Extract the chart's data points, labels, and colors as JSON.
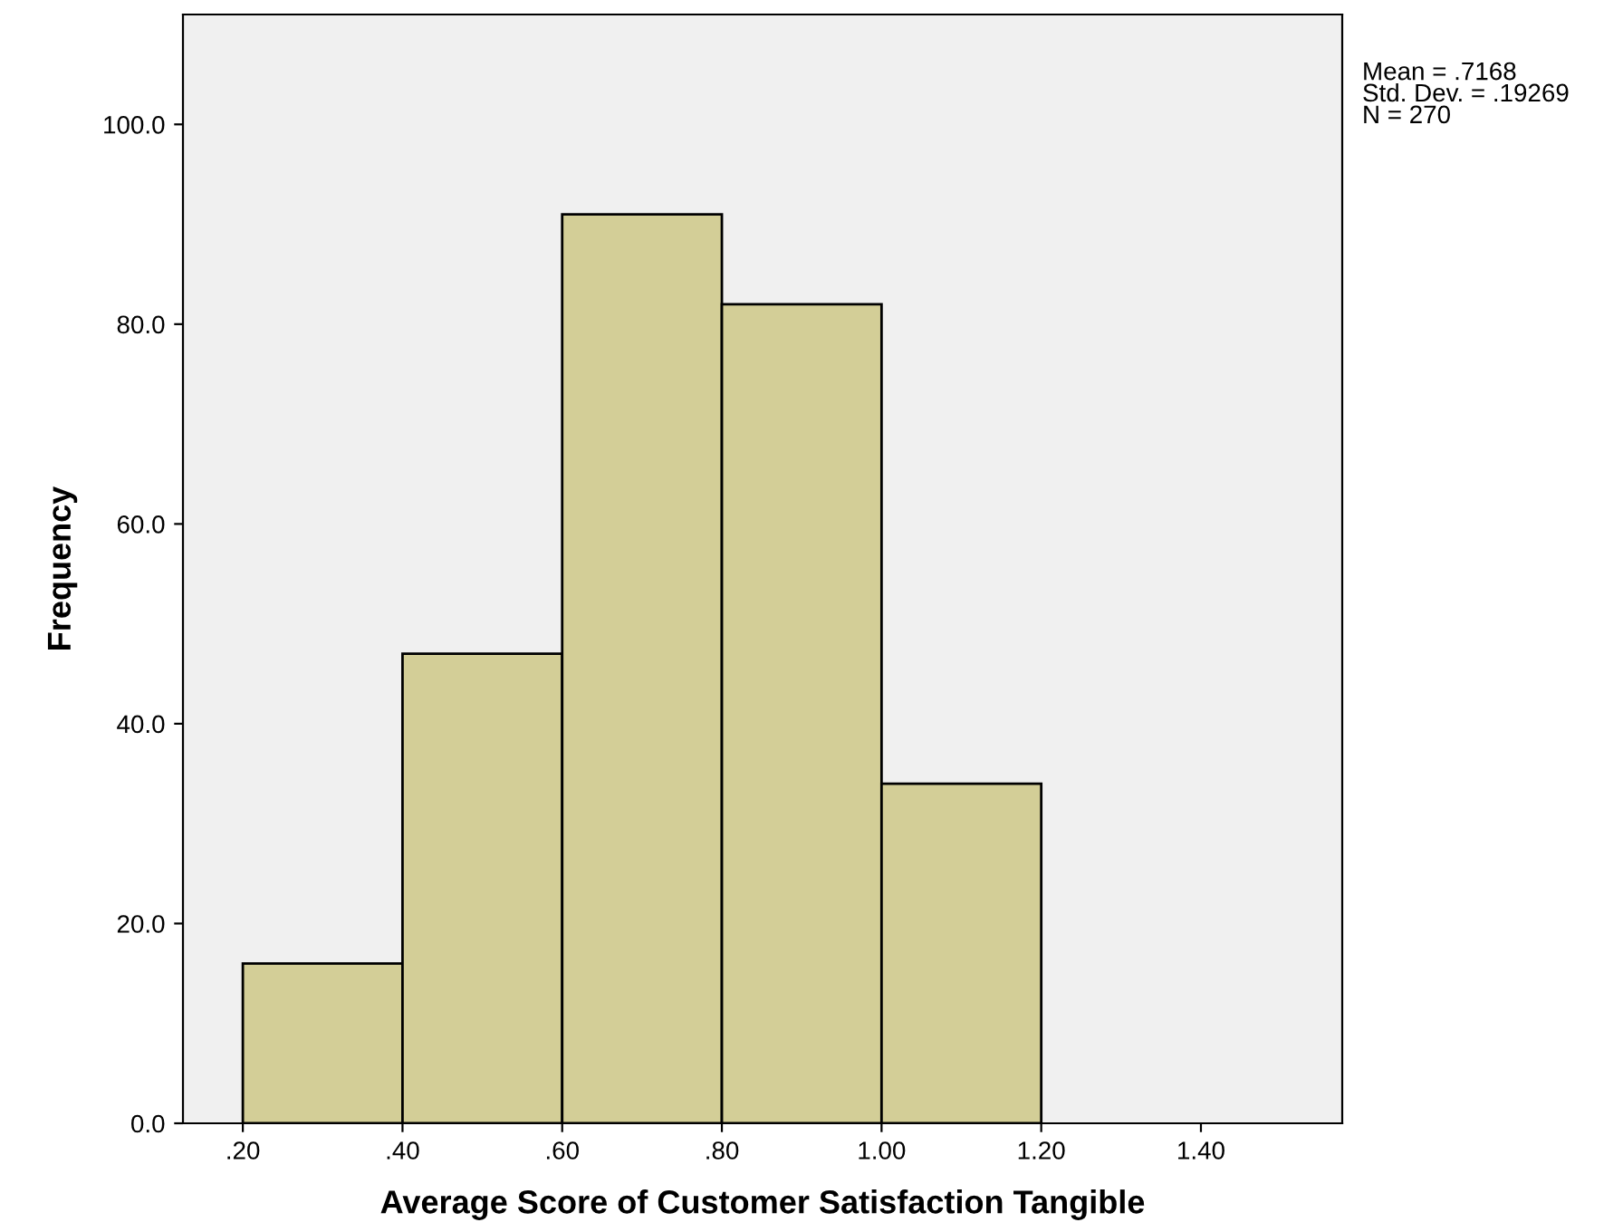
{
  "chart_data": {
    "type": "histogram",
    "xlabel": "Average Score of Customer Satisfaction Tangible",
    "ylabel": "Frequency",
    "bins": [
      0.2,
      0.4,
      0.6,
      0.8,
      1.0,
      1.2
    ],
    "values": [
      16,
      47,
      91,
      82,
      34
    ],
    "color": "#d3ce97",
    "xlim": [
      0.125,
      1.577
    ],
    "ylim": [
      0,
      111
    ],
    "xticks": [
      {
        "value": 0.2,
        "label": ".20"
      },
      {
        "value": 0.4,
        "label": ".40"
      },
      {
        "value": 0.6,
        "label": ".60"
      },
      {
        "value": 0.8,
        "label": ".80"
      },
      {
        "value": 1.0,
        "label": "1.00"
      },
      {
        "value": 1.2,
        "label": "1.20"
      },
      {
        "value": 1.4,
        "label": "1.40"
      }
    ],
    "yticks": [
      {
        "value": 0,
        "label": "0.0"
      },
      {
        "value": 20,
        "label": "20.0"
      },
      {
        "value": 40,
        "label": "40.0"
      },
      {
        "value": 60,
        "label": "60.0"
      },
      {
        "value": 80,
        "label": "80.0"
      },
      {
        "value": 100,
        "label": "100.0"
      }
    ],
    "grid": false,
    "annotations": [
      "Mean = .7168\nStd. Dev. = .19269\nN = 270"
    ]
  }
}
